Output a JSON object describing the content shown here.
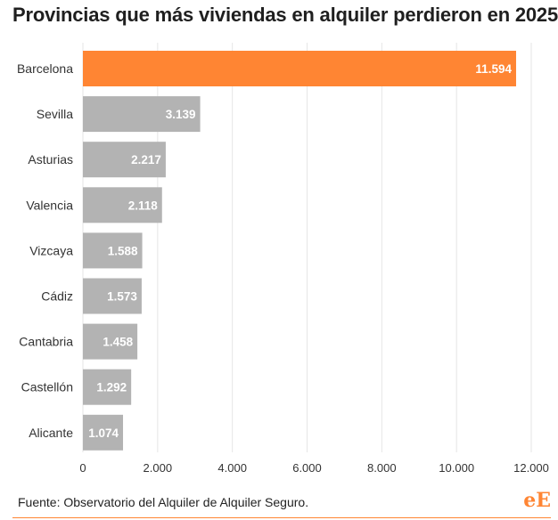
{
  "title": "Provincias que más viviendas en alquiler perdieron en 2025",
  "source": "Fuente: Observatorio del Alquiler de Alquiler Seguro.",
  "logo": {
    "part1": "e",
    "part2": "E"
  },
  "colors": {
    "highlight": "#ff8533",
    "bar": "#b3b3b3",
    "grid": "#e6e6e6",
    "text": "#333333"
  },
  "chart_data": {
    "type": "bar",
    "orientation": "horizontal",
    "title": "Provincias que más viviendas en alquiler perdieron en 2025",
    "categories": [
      "Barcelona",
      "Sevilla",
      "Asturias",
      "Valencia",
      "Vizcaya",
      "Cádiz",
      "Cantabria",
      "Castellón",
      "Alicante"
    ],
    "values": [
      11594,
      3139,
      2217,
      2118,
      1588,
      1573,
      1458,
      1292,
      1074
    ],
    "value_labels": [
      "11.594",
      "3.139",
      "2.217",
      "2.118",
      "1.588",
      "1.573",
      "1.458",
      "1.292",
      "1.074"
    ],
    "highlight_index": 0,
    "xlim": [
      0,
      12000
    ],
    "xticks": [
      0,
      2000,
      4000,
      6000,
      8000,
      10000,
      12000
    ],
    "xtick_labels": [
      "0",
      "2.000",
      "4.000",
      "6.000",
      "8.000",
      "10.000",
      "12.000"
    ],
    "grid": true,
    "xlabel": "",
    "ylabel": ""
  }
}
